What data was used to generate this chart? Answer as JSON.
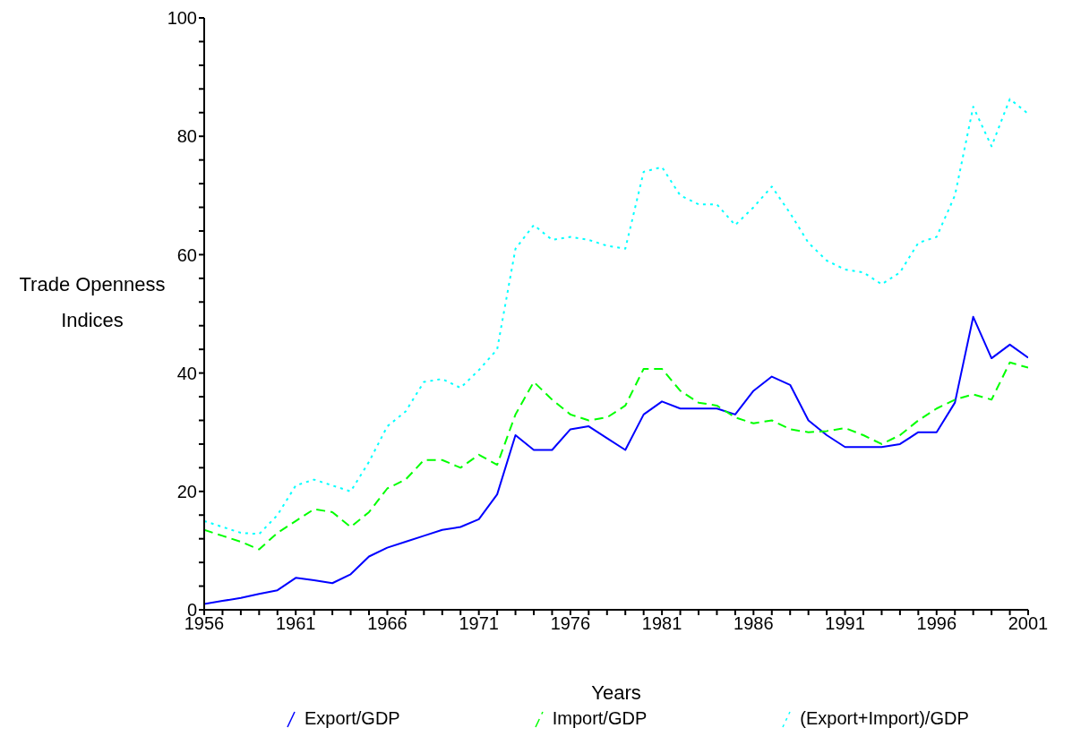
{
  "chart_data": {
    "type": "line",
    "xlabel": "Years",
    "ylabel": "Trade Openness Indices",
    "x": [
      1956,
      1957,
      1958,
      1959,
      1960,
      1961,
      1962,
      1963,
      1964,
      1965,
      1966,
      1967,
      1968,
      1969,
      1970,
      1971,
      1972,
      1973,
      1974,
      1975,
      1976,
      1977,
      1978,
      1979,
      1980,
      1981,
      1982,
      1983,
      1984,
      1985,
      1986,
      1987,
      1988,
      1989,
      1990,
      1991,
      1992,
      1993,
      1994,
      1995,
      1996,
      1997,
      1998,
      1999,
      2000,
      2001
    ],
    "series": [
      {
        "name": "Export/GDP",
        "color": "#0000ff",
        "line_style": "solid",
        "values": [
          1.0,
          1.5,
          2,
          2.7,
          3.3,
          5.4,
          5,
          4.5,
          6,
          9,
          10.5,
          11.5,
          12.5,
          13.5,
          14,
          15.3,
          19.5,
          29.5,
          27,
          27,
          30.5,
          31,
          29,
          27,
          33,
          35.2,
          34,
          34,
          34,
          33,
          37,
          39.4,
          38,
          32,
          29.5,
          27.5,
          27.5,
          27.5,
          28,
          30,
          30,
          35,
          49.5,
          42.5,
          44.8,
          42.6
        ]
      },
      {
        "name": "Import/GDP",
        "color": "#00ff00",
        "line_style": "dashed",
        "values": [
          13.5,
          12.5,
          11.5,
          10.2,
          13,
          15,
          17,
          16.5,
          14,
          16.5,
          20.5,
          22,
          25.3,
          25.3,
          24,
          26.2,
          24.5,
          33,
          38.5,
          35.5,
          33,
          32,
          32.5,
          34.5,
          40.7,
          40.7,
          37,
          35,
          34.5,
          32.5,
          31.5,
          32,
          30.5,
          30,
          30.2,
          30.7,
          29.5,
          28,
          29.5,
          32,
          34,
          35.5,
          36.4,
          35.5,
          41.8,
          40.9
        ]
      },
      {
        "name": "(Export+Import)/GDP",
        "color": "#00ffff",
        "line_style": "dotted",
        "values": [
          15,
          14,
          13,
          12.8,
          16,
          21,
          22,
          21,
          20,
          25,
          31,
          33.5,
          38.5,
          39,
          37.5,
          40.5,
          44,
          61,
          65,
          62.5,
          63,
          62.5,
          61.5,
          61,
          74,
          74.8,
          70,
          68.5,
          68.5,
          65,
          68,
          71.5,
          67,
          62,
          59,
          57.5,
          57,
          55,
          57,
          62,
          63,
          70,
          85,
          78.3,
          86.3,
          83.8
        ]
      }
    ],
    "xlim": [
      1956,
      2001
    ],
    "xticks": [
      1956,
      {
        "value": 1957,
        "label": null
      },
      {
        "value": 1958,
        "label": null
      },
      {
        "value": 1959,
        "label": null
      },
      {
        "value": 1960,
        "label": null
      },
      1961,
      {
        "value": 1962,
        "label": null
      },
      {
        "value": 1963,
        "label": null
      },
      {
        "value": 1964,
        "label": null
      },
      {
        "value": 1965,
        "label": null
      },
      1966,
      {
        "value": 1967,
        "label": null
      },
      {
        "value": 1968,
        "label": null
      },
      {
        "value": 1969,
        "label": null
      },
      {
        "value": 1970,
        "label": null
      },
      1971,
      {
        "value": 1972,
        "label": null
      },
      {
        "value": 1973,
        "label": null
      },
      {
        "value": 1974,
        "label": null
      },
      {
        "value": 1975,
        "label": null
      },
      1976,
      {
        "value": 1977,
        "label": null
      },
      {
        "value": 1978,
        "label": null
      },
      {
        "value": 1979,
        "label": null
      },
      {
        "value": 1980,
        "label": null
      },
      1981,
      {
        "value": 1982,
        "label": null
      },
      {
        "value": 1983,
        "label": null
      },
      {
        "value": 1984,
        "label": null
      },
      {
        "value": 1985,
        "label": null
      },
      1986,
      {
        "value": 1987,
        "label": null
      },
      {
        "value": 1988,
        "label": null
      },
      {
        "value": 1989,
        "label": null
      },
      {
        "value": 1990,
        "label": null
      },
      1991,
      {
        "value": 1992,
        "label": null
      },
      {
        "value": 1993,
        "label": null
      },
      {
        "value": 1994,
        "label": null
      },
      {
        "value": 1995,
        "label": null
      },
      1996,
      {
        "value": 1997,
        "label": null
      },
      {
        "value": 1998,
        "label": null
      },
      {
        "value": 1999,
        "label": null
      },
      {
        "value": 2000,
        "label": null
      },
      2001
    ],
    "ylim": [
      0,
      100
    ],
    "yticks": [
      0,
      {
        "value": 4,
        "label": null
      },
      {
        "value": 8,
        "label": null
      },
      {
        "value": 12,
        "label": null
      },
      {
        "value": 16,
        "label": null
      },
      20,
      {
        "value": 24,
        "label": null
      },
      {
        "value": 28,
        "label": null
      },
      {
        "value": 32,
        "label": null
      },
      {
        "value": 36,
        "label": null
      },
      40,
      {
        "value": 44,
        "label": null
      },
      {
        "value": 48,
        "label": null
      },
      {
        "value": 52,
        "label": null
      },
      {
        "value": 56,
        "label": null
      },
      60,
      {
        "value": 64,
        "label": null
      },
      {
        "value": 68,
        "label": null
      },
      {
        "value": 72,
        "label": null
      },
      {
        "value": 76,
        "label": null
      },
      80,
      {
        "value": 84,
        "label": null
      },
      {
        "value": 88,
        "label": null
      },
      {
        "value": 92,
        "label": null
      },
      {
        "value": 96,
        "label": null
      },
      100
    ],
    "grid": false,
    "legend": "bottom",
    "marker": "none"
  }
}
